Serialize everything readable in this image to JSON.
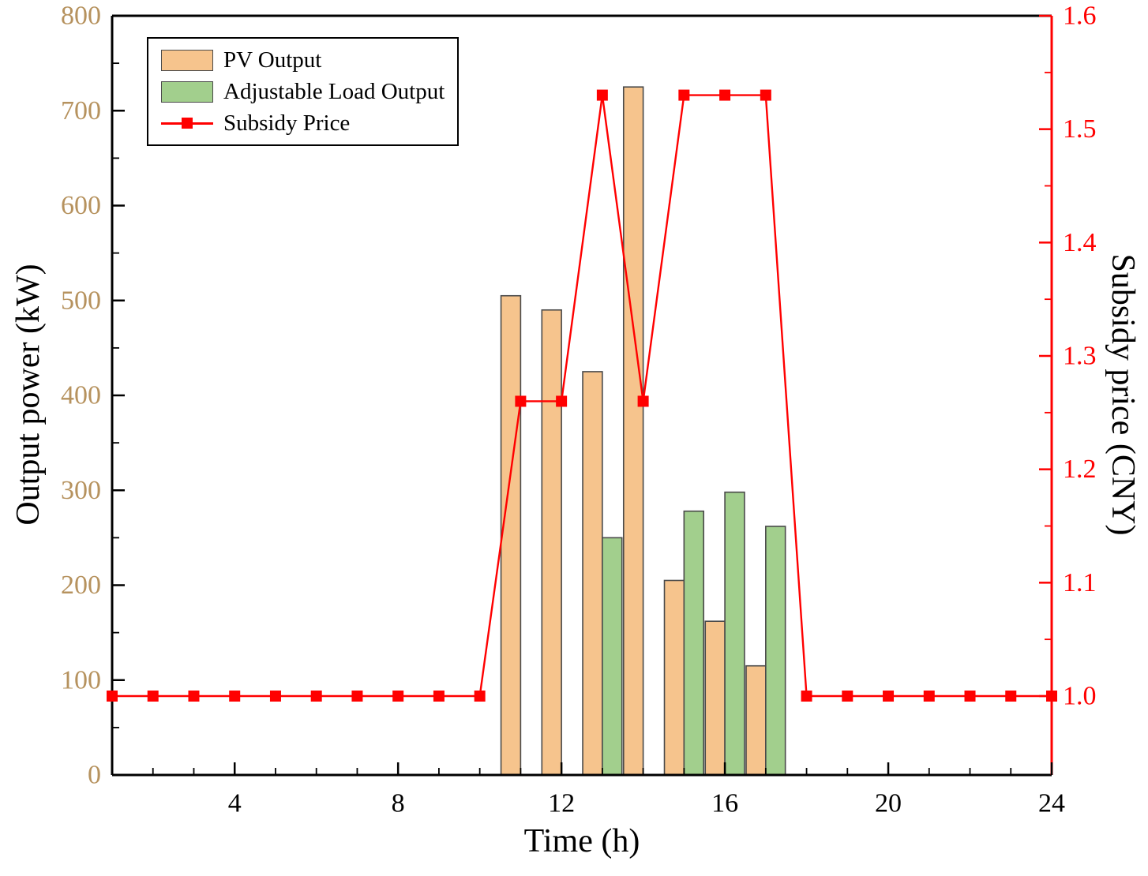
{
  "chart_data": {
    "type": "bar",
    "subtype": "grouped bars with secondary-axis line",
    "xlabel": "Time (h)",
    "ylabel_left": "Output power (kW)",
    "ylabel_right": "Subsidy price (CNY)",
    "xlim": [
      1,
      24
    ],
    "ylim_left": [
      0,
      800
    ],
    "ylim_right": [
      1.0,
      1.6
    ],
    "x_ticks": [
      4,
      8,
      12,
      16,
      20,
      24
    ],
    "y_ticks_left": [
      0,
      100,
      200,
      300,
      400,
      500,
      600,
      700,
      800
    ],
    "y_tick_labels_right": [
      "1.0",
      "1.1",
      "1.2",
      "1.3",
      "1.4",
      "1.5",
      "1.6"
    ],
    "grid": false,
    "legend_position": "upper-left",
    "x": [
      1,
      2,
      3,
      4,
      5,
      6,
      7,
      8,
      9,
      10,
      11,
      12,
      13,
      14,
      15,
      16,
      17,
      18,
      19,
      20,
      21,
      22,
      23,
      24
    ],
    "series": [
      {
        "name": "PV Output",
        "type": "bar",
        "axis": "left",
        "color": "#F6C48D",
        "values": [
          0,
          0,
          0,
          0,
          0,
          0,
          0,
          0,
          0,
          0,
          505,
          490,
          425,
          725,
          205,
          162,
          115,
          0,
          0,
          0,
          0,
          0,
          0,
          0
        ]
      },
      {
        "name": "Adjustable Load Output",
        "type": "bar",
        "axis": "left",
        "color": "#A2CF8D",
        "values": [
          0,
          0,
          0,
          0,
          0,
          0,
          0,
          0,
          0,
          0,
          0,
          0,
          250,
          0,
          278,
          298,
          262,
          0,
          0,
          0,
          0,
          0,
          0,
          0
        ]
      },
      {
        "name": "Subsidy Price",
        "type": "line",
        "axis": "right",
        "color": "#FF0000",
        "marker": "square",
        "values": [
          1.0,
          1.0,
          1.0,
          1.0,
          1.0,
          1.0,
          1.0,
          1.0,
          1.0,
          1.0,
          1.26,
          1.26,
          1.53,
          1.26,
          1.53,
          1.53,
          1.53,
          1.0,
          1.0,
          1.0,
          1.0,
          1.0,
          1.0,
          1.0
        ]
      }
    ],
    "colors": {
      "left_tick_label": "#B6925E",
      "right_axis": "#FF0000",
      "bar_border": "#4a4a4a",
      "spine": "#000000",
      "x_tick_label": "#000000"
    }
  }
}
